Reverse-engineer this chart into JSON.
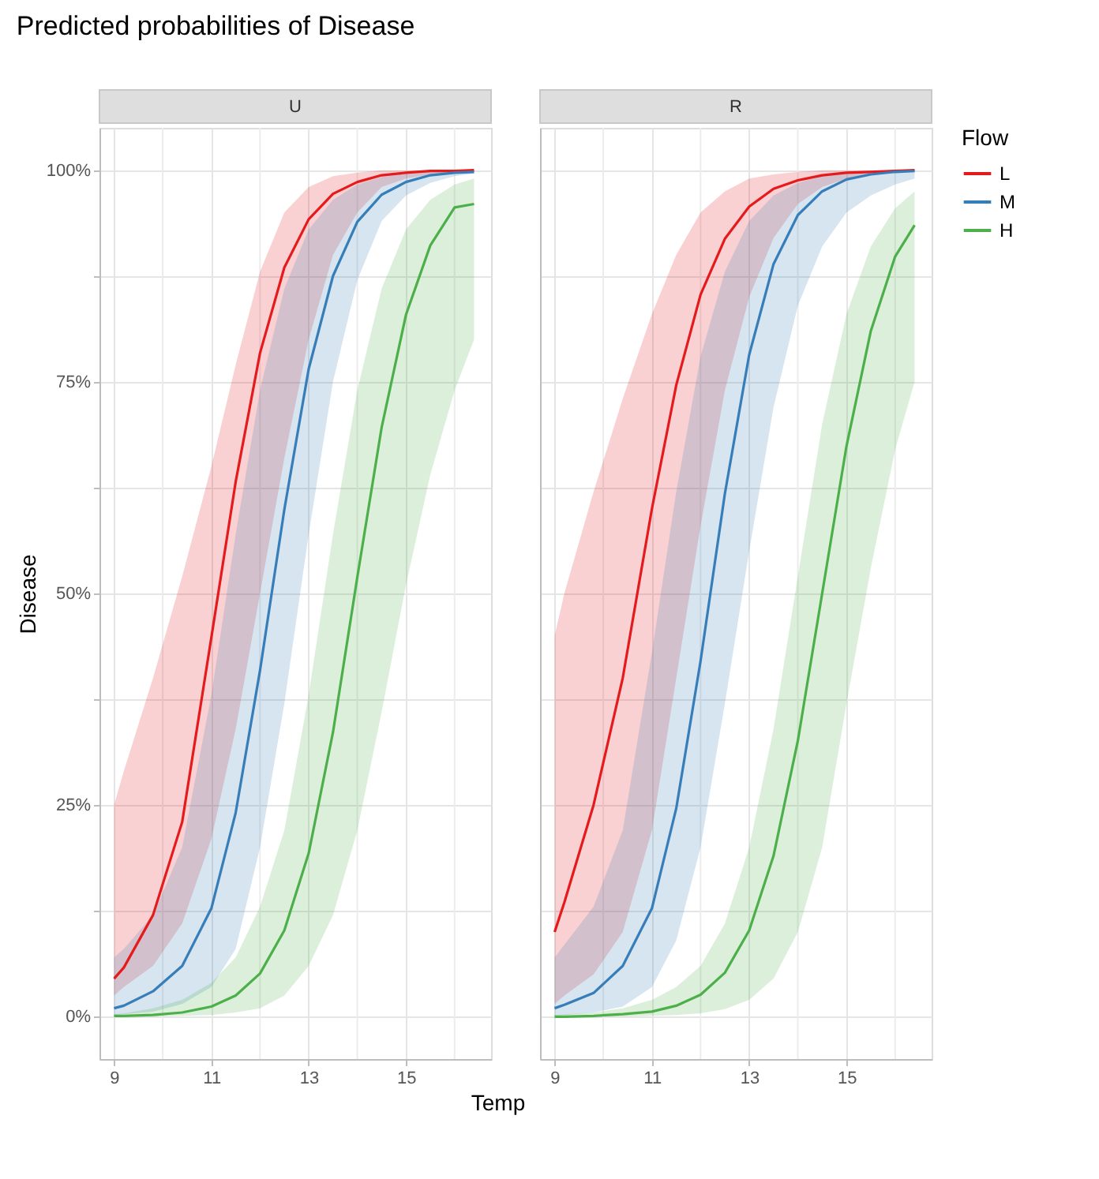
{
  "chart_data": [
    {
      "type": "line",
      "title": "Predicted probabilities of Disease",
      "subtitle": "U",
      "xlabel": "Temp",
      "ylabel": "Disease",
      "grid": true,
      "legend": "right",
      "legend_title": "Flow",
      "xlim": [
        8.7,
        16.75
      ],
      "xticks": [
        9,
        {
          "value": 10,
          "label": null
        },
        11,
        {
          "value": 12,
          "label": null
        },
        13,
        {
          "value": 14,
          "label": null
        },
        15,
        {
          "value": 16,
          "label": null
        }
      ],
      "ylim": [
        -5,
        105
      ],
      "yticks": [
        {
          "value": 0,
          "label": "0%"
        },
        {
          "value": 12.5,
          "label": null
        },
        {
          "value": 25,
          "label": "25%"
        },
        {
          "value": 37.5,
          "label": null
        },
        {
          "value": 50,
          "label": "50%"
        },
        {
          "value": 62.5,
          "label": null
        },
        {
          "value": 75,
          "label": "75%"
        },
        {
          "value": 87.5,
          "label": null
        },
        {
          "value": 100,
          "label": "100%"
        }
      ],
      "x": [
        9,
        9.2,
        9.8,
        10.4,
        11,
        11.5,
        12,
        12.5,
        13,
        13.5,
        14,
        14.5,
        15,
        15.5,
        16,
        16.4
      ],
      "series": [
        {
          "name": "L",
          "color": "#e41a1c",
          "values": [
            4.5,
            5.8,
            12,
            23,
            44.8,
            63.2,
            78.4,
            88.5,
            94.2,
            97.2,
            98.6,
            99.4,
            99.7,
            99.9,
            99.9,
            100
          ],
          "lower": [
            2.5,
            3.5,
            6,
            11,
            21,
            34,
            50,
            66,
            80,
            90,
            95,
            98,
            99,
            99.5,
            99.8,
            99.9
          ],
          "upper": [
            25,
            29,
            40,
            52,
            65,
            77,
            88,
            95,
            98,
            99.3,
            99.7,
            100,
            100,
            100,
            100,
            100
          ]
        },
        {
          "name": "M",
          "color": "#377eb8",
          "values": [
            1,
            1.3,
            3,
            6,
            12.8,
            24.1,
            40.9,
            59.9,
            76.5,
            87.5,
            93.9,
            97.1,
            98.6,
            99.4,
            99.7,
            99.8
          ],
          "lower": [
            0.2,
            0.3,
            0.6,
            1.5,
            3.5,
            8,
            20,
            37,
            57,
            75,
            87,
            94,
            97,
            98.5,
            99.3,
            99.6
          ],
          "upper": [
            7,
            8,
            12,
            20,
            38,
            57,
            74,
            86,
            93,
            96.5,
            98.3,
            99.2,
            99.6,
            99.8,
            99.9,
            100
          ]
        },
        {
          "name": "H",
          "color": "#4daf4a",
          "values": [
            0.1,
            0.1,
            0.2,
            0.5,
            1.2,
            2.5,
            5.1,
            10.2,
            19.3,
            33.6,
            51.9,
            69.6,
            82.9,
            91.1,
            95.6,
            96
          ],
          "lower": [
            0,
            0,
            0,
            0.1,
            0.2,
            0.5,
            1,
            2.5,
            6,
            12,
            22,
            36,
            51,
            64,
            74,
            80
          ],
          "upper": [
            0.3,
            0.4,
            1,
            2,
            4,
            7,
            13,
            22,
            38,
            57,
            74,
            86,
            93,
            96.5,
            98.3,
            99
          ]
        }
      ]
    },
    {
      "type": "line",
      "subtitle": "R",
      "grid": true,
      "legend": "right",
      "tick_labels": "x",
      "xlim": [
        8.7,
        16.75
      ],
      "xticks": [
        9,
        {
          "value": 10,
          "label": null
        },
        11,
        {
          "value": 12,
          "label": null
        },
        13,
        {
          "value": 14,
          "label": null
        },
        15,
        {
          "value": 16,
          "label": null
        }
      ],
      "ylim": [
        -5,
        105
      ],
      "yticks": [
        {
          "value": 0,
          "label": null
        },
        {
          "value": 12.5,
          "label": null
        },
        {
          "value": 25,
          "label": null
        },
        {
          "value": 37.5,
          "label": null
        },
        {
          "value": 50,
          "label": null
        },
        {
          "value": 62.5,
          "label": null
        },
        {
          "value": 75,
          "label": null
        },
        {
          "value": 87.5,
          "label": null
        },
        {
          "value": 100,
          "label": null
        }
      ],
      "x": [
        9,
        9.2,
        9.8,
        10.4,
        11,
        11.5,
        12,
        12.5,
        13,
        13.5,
        14,
        14.5,
        15,
        15.5,
        16,
        16.4
      ],
      "series": [
        {
          "name": "L",
          "color": "#e41a1c",
          "values": [
            10,
            13.5,
            25,
            40,
            60,
            74.6,
            85.3,
            91.9,
            95.7,
            97.8,
            98.8,
            99.4,
            99.7,
            99.8,
            99.9,
            100
          ],
          "lower": [
            1.5,
            2.5,
            5,
            10,
            22,
            40,
            58,
            74,
            85,
            92,
            96,
            98,
            99,
            99.5,
            99.8,
            99.9
          ],
          "upper": [
            45,
            50,
            62,
            73,
            83,
            90,
            95,
            97.5,
            99,
            99.5,
            99.8,
            100,
            100,
            100,
            100,
            100
          ]
        },
        {
          "name": "M",
          "color": "#377eb8",
          "values": [
            1,
            1.4,
            2.8,
            6,
            12.8,
            24.6,
            42,
            61.8,
            78.2,
            88.9,
            94.7,
            97.5,
            98.9,
            99.5,
            99.8,
            99.9
          ],
          "lower": [
            0.1,
            0.2,
            0.5,
            1.2,
            3.5,
            9,
            20,
            37,
            55,
            72,
            84,
            91,
            95,
            97,
            98.3,
            99
          ],
          "upper": [
            7,
            8.5,
            13,
            22,
            43,
            62,
            78,
            88,
            94,
            97,
            98.5,
            99.3,
            99.6,
            99.8,
            99.9,
            100
          ]
        },
        {
          "name": "H",
          "color": "#4daf4a",
          "values": [
            0,
            0,
            0.1,
            0.3,
            0.6,
            1.3,
            2.6,
            5.2,
            10.2,
            19,
            32.6,
            50,
            67.4,
            81,
            89.8,
            93.5
          ],
          "lower": [
            0,
            0,
            0,
            0,
            0.1,
            0.2,
            0.4,
            0.9,
            2,
            4.5,
            10,
            20,
            37,
            53,
            67,
            75
          ],
          "upper": [
            0.2,
            0.3,
            0.5,
            1,
            2,
            3.5,
            6,
            11,
            20,
            34,
            52,
            70,
            83,
            91,
            95.5,
            97.5
          ]
        }
      ]
    }
  ]
}
